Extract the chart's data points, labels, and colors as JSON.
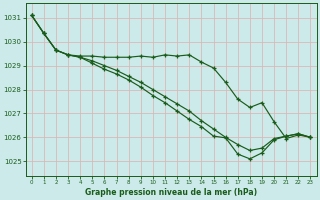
{
  "bg_color": "#cceaea",
  "grid_color": "#b0d0d0",
  "line_color": "#1a5c1a",
  "marker_color": "#1a5c1a",
  "xlabel": "Graphe pression niveau de la mer (hPa)",
  "xlabel_color": "#1a5c1a",
  "tick_color": "#1a5c1a",
  "xlim": [
    -0.5,
    23.5
  ],
  "ylim": [
    1024.4,
    1031.6
  ],
  "yticks": [
    1025,
    1026,
    1027,
    1028,
    1029,
    1030,
    1031
  ],
  "xticks": [
    0,
    1,
    2,
    3,
    4,
    5,
    6,
    7,
    8,
    9,
    10,
    11,
    12,
    13,
    14,
    15,
    16,
    17,
    18,
    19,
    20,
    21,
    22,
    23
  ],
  "series": [
    [
      1031.1,
      1030.35,
      1029.65,
      1029.45,
      1029.4,
      1029.4,
      1029.35,
      1029.35,
      1029.35,
      1029.4,
      1029.35,
      1029.45,
      1029.4,
      1029.45,
      1029.15,
      1028.9,
      1028.3,
      1027.6,
      1027.25,
      1027.45,
      1026.65,
      1025.95,
      1026.1,
      1026.0
    ],
    [
      1031.1,
      1030.35,
      1029.65,
      1029.45,
      1029.35,
      1029.2,
      1029.0,
      1028.8,
      1028.55,
      1028.3,
      1028.0,
      1027.7,
      1027.4,
      1027.1,
      1026.7,
      1026.35,
      1026.0,
      1025.7,
      1025.45,
      1025.55,
      1025.95,
      1026.05,
      1026.15,
      1026.0
    ],
    [
      1031.1,
      1030.35,
      1029.65,
      1029.45,
      1029.35,
      1029.1,
      1028.85,
      1028.65,
      1028.4,
      1028.1,
      1027.75,
      1027.45,
      1027.1,
      1026.75,
      1026.45,
      1026.05,
      1025.98,
      1025.3,
      1025.1,
      1025.35,
      1025.9,
      1026.05,
      1026.15,
      1026.0
    ]
  ]
}
